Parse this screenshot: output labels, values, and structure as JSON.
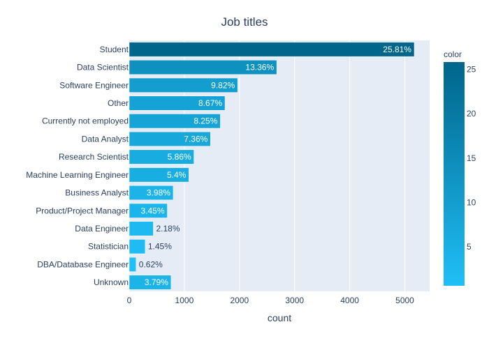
{
  "chart_data": {
    "type": "bar",
    "orientation": "horizontal",
    "title": "Job titles",
    "xlabel": "count",
    "ylabel": "",
    "xlim": [
      0,
      5450
    ],
    "xticks": [
      0,
      1000,
      2000,
      3000,
      4000,
      5000
    ],
    "grid": true,
    "categories": [
      "Student",
      "Data Scientist",
      "Software Engineer",
      "Other",
      "Currently not employed",
      "Data Analyst",
      "Research Scientist",
      "Machine Learning Engineer",
      "Business Analyst",
      "Product/Project Manager",
      "Data Engineer",
      "Statistician",
      "DBA/Database Engineer",
      "Unknown"
    ],
    "values": [
      5171,
      2676,
      1967,
      1737,
      1653,
      1474,
      1174,
      1082,
      798,
      691,
      437,
      290,
      124,
      759
    ],
    "percent_labels": [
      "25.81%",
      "13.36%",
      "9.82%",
      "8.67%",
      "8.25%",
      "7.36%",
      "5.86%",
      "5.4%",
      "3.98%",
      "3.45%",
      "2.18%",
      "1.45%",
      "0.62%",
      "3.79%"
    ],
    "color_values": [
      25.81,
      13.36,
      9.82,
      8.67,
      8.25,
      7.36,
      5.86,
      5.4,
      3.98,
      3.45,
      2.18,
      1.45,
      0.62,
      3.79
    ],
    "colorbar": {
      "title": "color",
      "range": [
        0.62,
        25.81
      ],
      "ticks": [
        5,
        10,
        15,
        20,
        25
      ],
      "color_low": "#1fbff7",
      "color_high": "#00658a"
    },
    "colors": {
      "plot_background": "#e5ecf6",
      "gridline": "#ffffff",
      "text": "#2a3f5f",
      "inside_label": "#ffffff",
      "outside_label": "#2a3f5f"
    }
  }
}
